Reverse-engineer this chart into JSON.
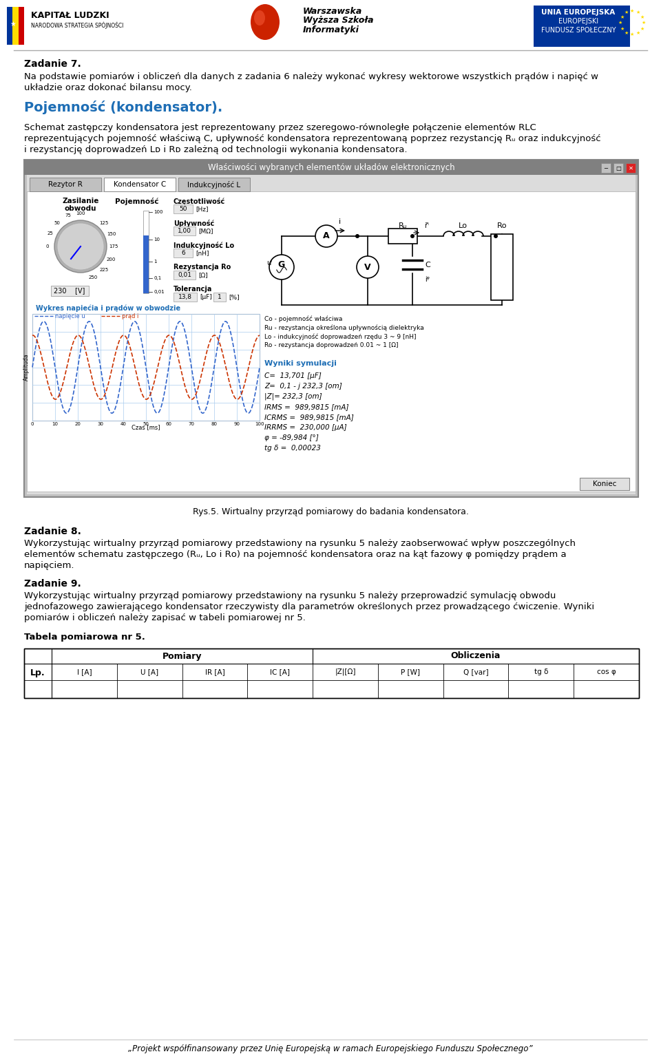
{
  "title_header_left": "KAPITAŁ LUDZKI",
  "title_header_left_sub": "NARODOWA STRATEGIA SPÓJNOŚCI",
  "title_header_center_1": "Warszawska",
  "title_header_center_2": "Wyższa Szkoła",
  "title_header_center_3": "Informatyki",
  "title_header_right_1": "UNIA EUROPEJSKA",
  "title_header_right_2": "EUROPEJSKI",
  "title_header_right_3": "FUNDUSZ SPOŁECZNY",
  "zadanie7_title": "Zadanie 7.",
  "zadanie7_line1": "Na podstawie pomiarów i obliczeń dla danych z zadania 6 należy wykonać wykresy wektorowe wszystkich prądów i napięć w",
  "zadanie7_line2": "układzie oraz dokonać bilansu mocy.",
  "pojemnosc_title": "Pojemność (kondensator).",
  "pojemnosc_line1": "Schemat zastępczy kondensatora jest reprezentowany przez szeregowo-równoległe połączenie elementów RLC",
  "pojemnosc_line2": "reprezentujących pojemność właściwą C, upływność kondensatora reprezentowaną poprzez rezystancję Rᵤ oraz indukcyjność",
  "pojemnosc_line3": "i rezystancję doprowadzeń Lᴅ i Rᴅ zależną od technologii wykonania kondensatora.",
  "window_title": "Właściwości wybranych elementów układów elektronicznych",
  "tab1": "Rezytor R",
  "tab2": "Kondensator C",
  "tab3": "Indukcyjność L",
  "zasilanie_label1": "Zasilanie",
  "zasilanie_label2": "obwodu",
  "pojemnosc_label": "Pojemność",
  "czestotliwosc_label": "Częstotliwość",
  "czest_val": "50",
  "czest_unit": "[Hz]",
  "uplywnosc_label": "Upływność",
  "upl_val": "1,00",
  "upl_unit": "[MΩ]",
  "indukcyjnosc_lo_label": "Indukcyjność Lo",
  "ind_val": "6",
  "ind_unit": "[nH]",
  "rezystancja_ro_label": "Rezystancja Ro",
  "rez_val": "0,01",
  "rez_unit": "[Ω]",
  "tolerancja_label": "Tolerancja",
  "tol_val1": "13,8",
  "tol_unit1": "[μF]",
  "tol_val2": "1",
  "tol_unit2": "[%]",
  "wykres_title": "Wykres napiećia i prądów w obwodzie",
  "legend1": "napięcie u",
  "legend2": "prąd i",
  "wyniki_title": "Wyniki symulacji",
  "wyniki_lines": [
    "C=  13,701 [μF]",
    "Z=  0,1 - j 232,3 [om]",
    "|Z|= 232,3 [om]",
    "IRMS =  989,9815 [mA]",
    "ICRMS =  989,9815 [mA]",
    "IRRMS =  230,000 [μA]",
    "φ = -89,984 [°]",
    "tg δ =  0,00023"
  ],
  "circuit_notes": [
    "Co - pojemność właściwa",
    "Ru - rezystancja określona upływnością dielektryka",
    "Lo - indukcyjność doprowadzeń rzędu 3 ~ 9 [nH]",
    "Ro - rezystancja doprowadzeń 0.01 ~ 1 [Ω]"
  ],
  "zadanie8_title": "Zadanie 8.",
  "zadanie8_line1": "Wykorzystując wirtualny przyrząd pomiarowy przedstawiony na rysunku 5 należy zaobserwować wpływ poszczególnych",
  "zadanie8_line2": "elementów schematu zastępczego (Rᵤ, Lᴏ i Rᴏ) na pojemność kondensatora oraz na kąt fazowy φ pomiędzy prądem a",
  "zadanie8_line3": "napięciem.",
  "zadanie9_title": "Zadanie 9.",
  "zadanie9_line1": "Wykorzystując wirtualny przyrząd pomiarowy przedstawiony na rysunku 5 należy przeprowadzić symulację obwodu",
  "zadanie9_line2": "jednofazowego zawierającego kondensator rzeczywisty dla parametrów określonych przez prowadzącego ćwiczenie. Wyniki",
  "zadanie9_line3": "pomiarów i obliczeń należy zapisać w tabeli pomiarowej nr 5.",
  "tabela_title": "Tabela pomiarowa nr 5.",
  "tabela_headers_pomiary": "Pomiary",
  "tabela_headers_obliczenia": "Obliczenia",
  "tabela_col_lp": "Lp.",
  "tabela_cols": [
    "I [A]",
    "U [A]",
    "IR [A]",
    "IC [A]",
    "|Z|[Ω]",
    "P [W]",
    "Q [var]",
    "tg δ",
    "cos φ"
  ],
  "footer_text": "„Projekt współfinansowany przez Unię Europejską w ramach Europejskiego Funduszu Społecznego”",
  "rys5_caption": "Rys.5. Wirtualny przyrząd pomiarowy do badania kondensatora.",
  "bg_color": "#ffffff",
  "blue_title_color": "#1e6eb5",
  "voltage_label": "230",
  "voltage_unit": "[V]"
}
